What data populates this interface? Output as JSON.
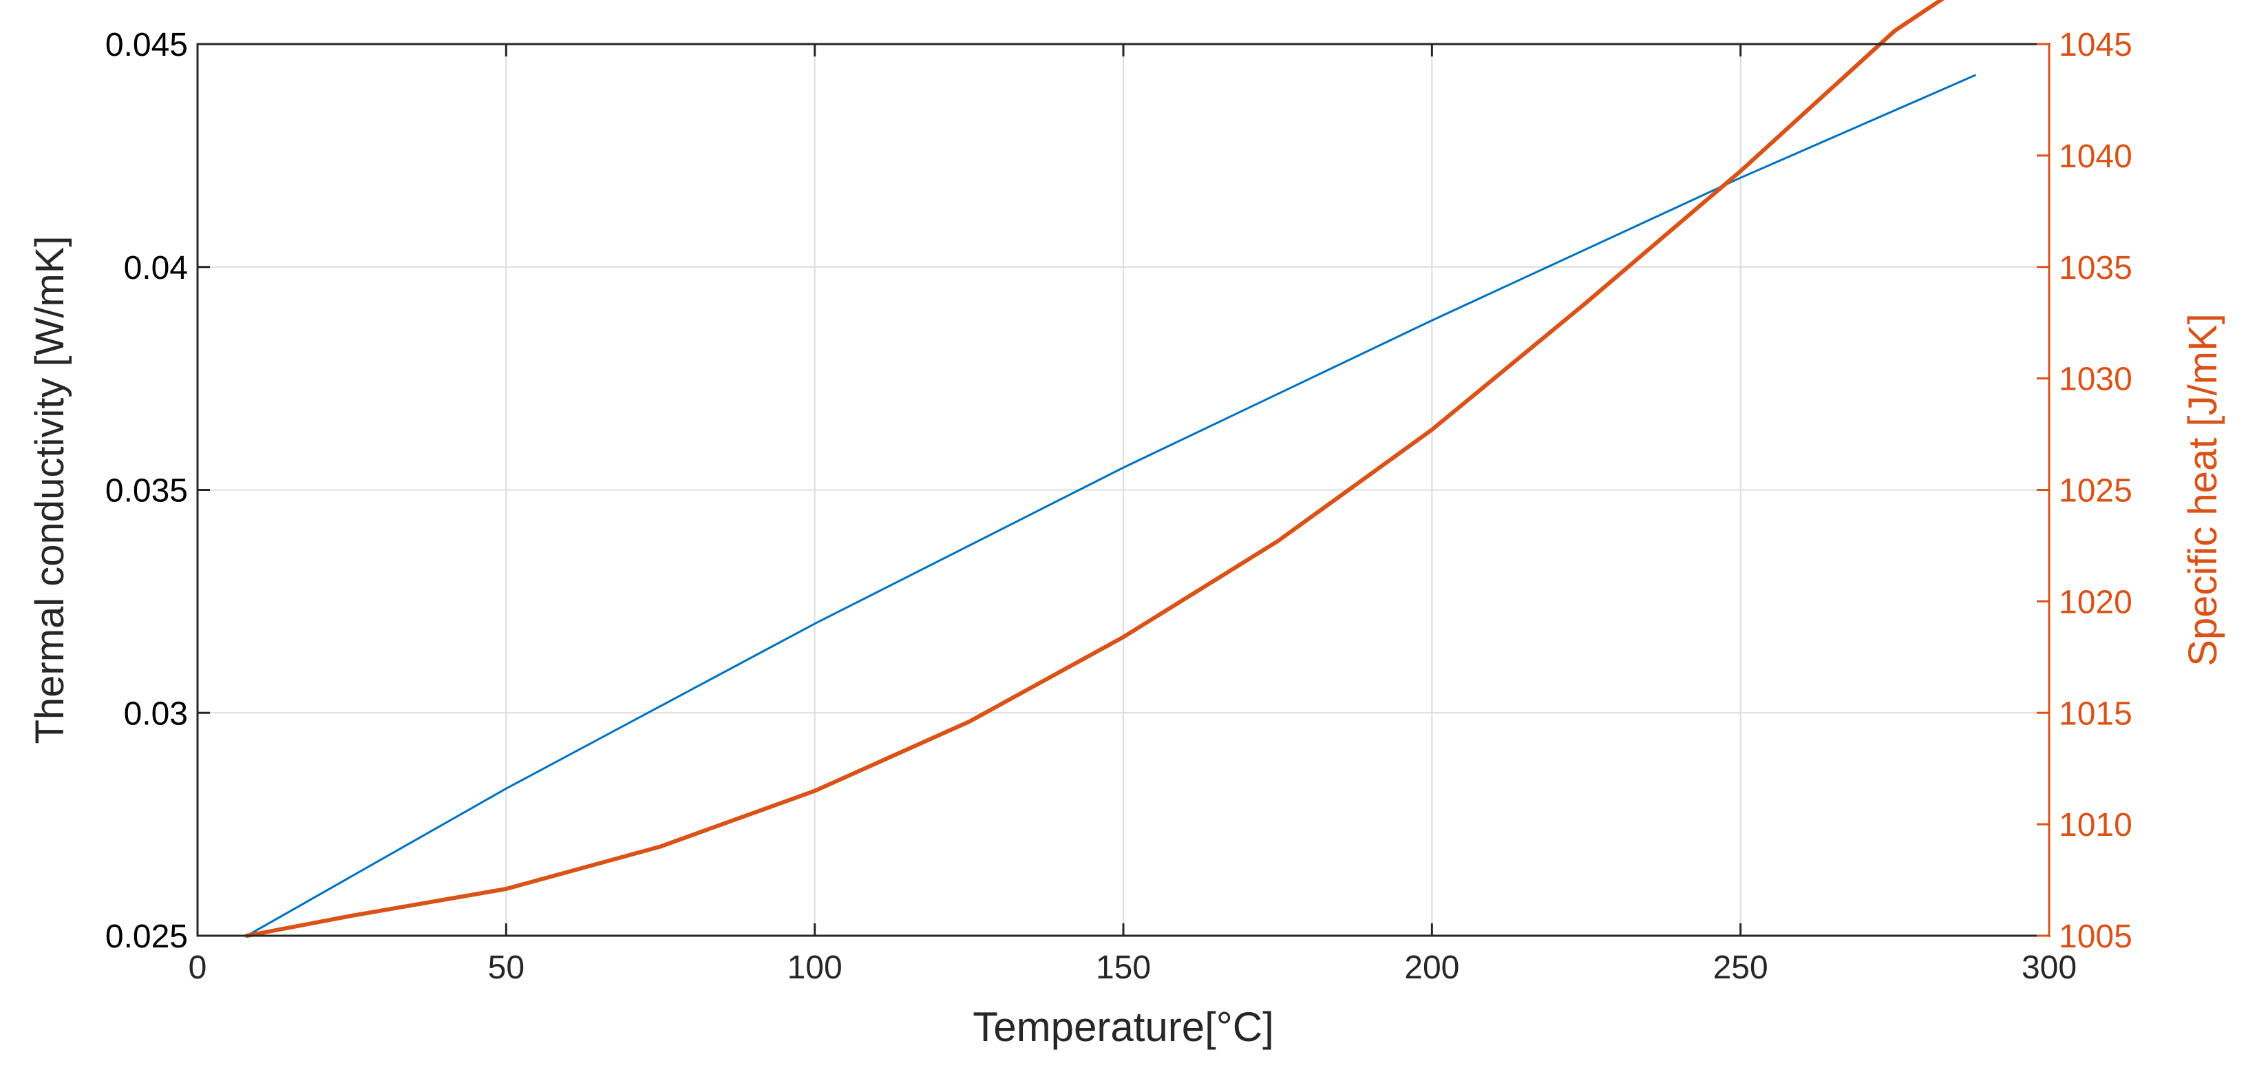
{
  "chart_data": {
    "type": "line",
    "xlabel": "Temperature[°C]",
    "xlim": [
      0,
      300
    ],
    "xticks": [
      0,
      50,
      100,
      150,
      200,
      250,
      300
    ],
    "grid": true,
    "y_left": {
      "label": "Thermal conductivity [W/mK]",
      "lim": [
        0.025,
        0.045
      ],
      "ticks": [
        "0.025",
        "0.03",
        "0.035",
        "0.04",
        "0.045"
      ],
      "color": "#000000"
    },
    "y_right": {
      "label": "Specific heat [J/mK]",
      "lim": [
        1005,
        1045
      ],
      "ticks": [
        "1005",
        "1010",
        "1015",
        "1020",
        "1025",
        "1030",
        "1035",
        "1040",
        "1045"
      ],
      "color": "#D95319"
    },
    "series": [
      {
        "axis": "left",
        "color": "#0072BD",
        "x": [
          8,
          50,
          100,
          150,
          200,
          250,
          288
        ],
        "y": [
          0.025,
          0.0283,
          0.032,
          0.0355,
          0.0388,
          0.042,
          0.0443
        ]
      },
      {
        "axis": "right",
        "color": "#D95319",
        "x": [
          8,
          25,
          50,
          75,
          100,
          125,
          150,
          175,
          200,
          225,
          250,
          275,
          288
        ],
        "y": [
          1005.0,
          1005.9,
          1007.1,
          1009.0,
          1011.5,
          1014.6,
          1018.4,
          1022.7,
          1027.7,
          1033.4,
          1039.3,
          1045.6,
          1048.0
        ]
      }
    ]
  }
}
